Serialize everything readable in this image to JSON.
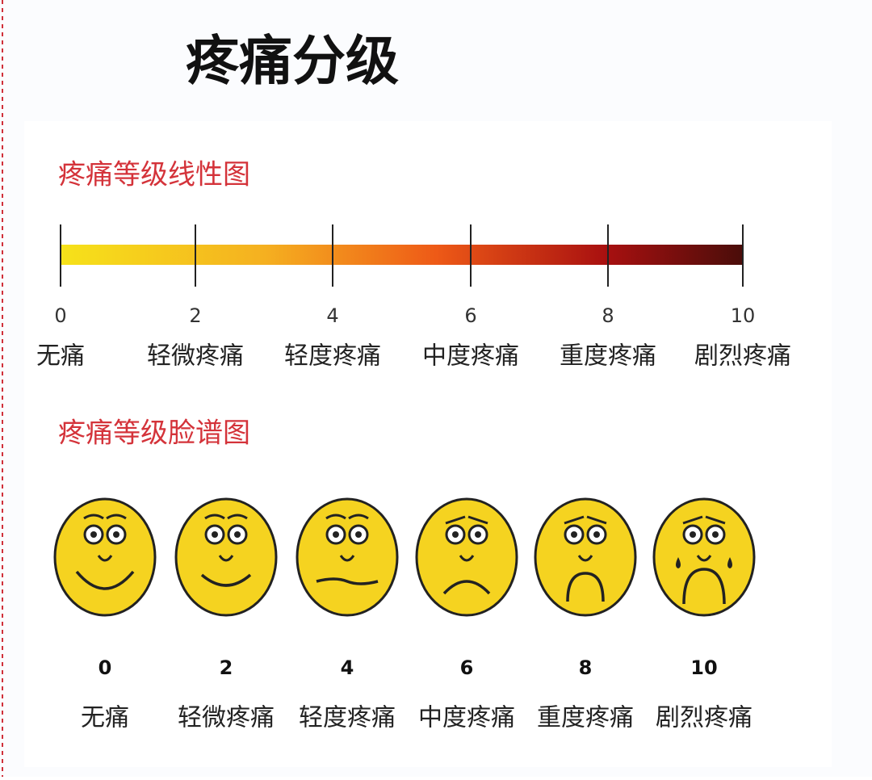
{
  "header": {
    "title": "疼痛分级"
  },
  "linear": {
    "title": "疼痛等级线性图",
    "ticks": [
      {
        "value": 0,
        "label": "无痛"
      },
      {
        "value": 2,
        "label": "轻微疼痛"
      },
      {
        "value": 4,
        "label": "轻度疼痛"
      },
      {
        "value": 6,
        "label": "中度疼痛"
      },
      {
        "value": 8,
        "label": "重度疼痛"
      },
      {
        "value": 10,
        "label": "剧烈疼痛"
      }
    ]
  },
  "faces": {
    "title": "疼痛等级脸谱图",
    "items": [
      {
        "score": 0,
        "label": "无痛"
      },
      {
        "score": 2,
        "label": "轻微疼痛"
      },
      {
        "score": 4,
        "label": "轻度疼痛"
      },
      {
        "score": 6,
        "label": "中度疼痛"
      },
      {
        "score": 8,
        "label": "重度疼痛"
      },
      {
        "score": 10,
        "label": "剧烈疼痛"
      }
    ]
  }
}
